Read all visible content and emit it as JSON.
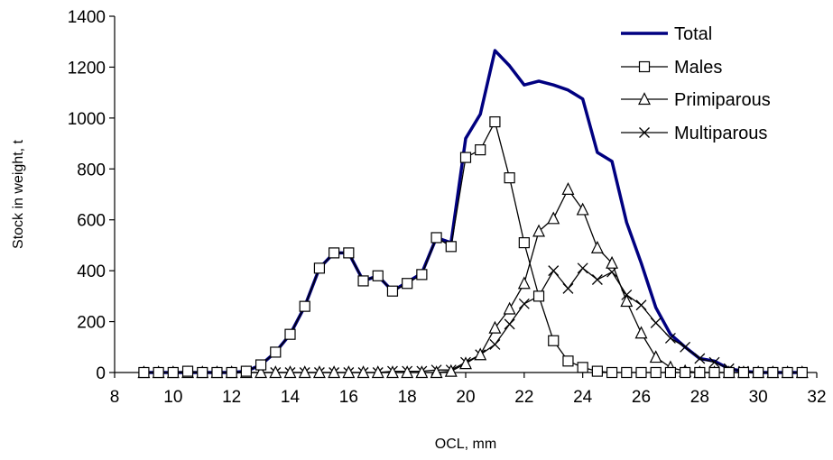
{
  "chart_data": {
    "type": "line",
    "xlabel": "OCL, mm",
    "ylabel": "Stock in weight, t",
    "xlim": [
      8,
      32
    ],
    "ylim": [
      0,
      1400
    ],
    "x_ticks": [
      8,
      10,
      12,
      14,
      16,
      18,
      20,
      22,
      24,
      26,
      28,
      30,
      32
    ],
    "y_ticks": [
      0,
      200,
      400,
      600,
      800,
      1000,
      1200,
      1400
    ],
    "grid": false,
    "legend_position": "top-right",
    "series": [
      {
        "name": "Total",
        "marker": "none",
        "color": "#000080",
        "x": [
          9,
          9.5,
          10,
          10.5,
          11,
          11.5,
          12,
          12.5,
          13,
          13.5,
          14,
          14.5,
          15,
          15.5,
          16,
          16.5,
          17,
          17.5,
          18,
          18.5,
          19,
          19.5,
          20,
          20.5,
          21,
          21.5,
          22,
          22.5,
          23,
          23.5,
          24,
          24.5,
          25,
          25.5,
          26,
          26.5,
          27,
          27.5,
          28,
          28.5,
          29,
          29.5,
          30,
          30.5,
          31,
          31.5
        ],
        "y": [
          0,
          0,
          0,
          0,
          0,
          0,
          0,
          5,
          30,
          80,
          150,
          260,
          410,
          470,
          470,
          360,
          380,
          320,
          355,
          390,
          530,
          510,
          920,
          1015,
          1265,
          1205,
          1130,
          1145,
          1130,
          1110,
          1075,
          865,
          830,
          590,
          430,
          255,
          150,
          100,
          55,
          45,
          15,
          5,
          0,
          0,
          0,
          0
        ]
      },
      {
        "name": "Males",
        "marker": "square",
        "color": "#000000",
        "x": [
          9,
          9.5,
          10,
          10.5,
          11,
          11.5,
          12,
          12.5,
          13,
          13.5,
          14,
          14.5,
          15,
          15.5,
          16,
          16.5,
          17,
          17.5,
          18,
          18.5,
          19,
          19.5,
          20,
          20.5,
          21,
          21.5,
          22,
          22.5,
          23,
          23.5,
          24,
          24.5,
          25,
          25.5,
          26,
          26.5,
          27,
          27.5,
          28,
          28.5,
          29,
          29.5,
          30,
          30.5,
          31,
          31.5
        ],
        "y": [
          0,
          0,
          0,
          5,
          0,
          0,
          0,
          5,
          30,
          80,
          150,
          260,
          410,
          470,
          470,
          360,
          380,
          320,
          350,
          385,
          530,
          495,
          845,
          875,
          985,
          765,
          510,
          300,
          125,
          45,
          20,
          5,
          0,
          0,
          0,
          0,
          0,
          0,
          0,
          0,
          0,
          0,
          0,
          0,
          0,
          0
        ]
      },
      {
        "name": "Primiparous",
        "marker": "triangle",
        "color": "#000000",
        "x": [
          9,
          9.5,
          10,
          10.5,
          11,
          11.5,
          12,
          12.5,
          13,
          13.5,
          14,
          14.5,
          15,
          15.5,
          16,
          16.5,
          17,
          17.5,
          18,
          18.5,
          19,
          19.5,
          20,
          20.5,
          21,
          21.5,
          22,
          22.5,
          23,
          23.5,
          24,
          24.5,
          25,
          25.5,
          26,
          26.5,
          27,
          27.5,
          28,
          28.5,
          29,
          29.5,
          30,
          30.5,
          31,
          31.5
        ],
        "y": [
          0,
          0,
          0,
          0,
          0,
          0,
          0,
          0,
          0,
          0,
          0,
          0,
          0,
          0,
          0,
          0,
          0,
          0,
          0,
          0,
          0,
          5,
          35,
          70,
          175,
          250,
          350,
          555,
          605,
          720,
          640,
          490,
          430,
          280,
          155,
          60,
          20,
          5,
          0,
          0,
          0,
          0,
          0,
          0,
          0,
          0
        ]
      },
      {
        "name": "Multiparous",
        "marker": "x",
        "color": "#000000",
        "x": [
          9,
          9.5,
          10,
          10.5,
          11,
          11.5,
          12,
          12.5,
          13,
          13.5,
          14,
          14.5,
          15,
          15.5,
          16,
          16.5,
          17,
          17.5,
          18,
          18.5,
          19,
          19.5,
          20,
          20.5,
          21,
          21.5,
          22,
          22.5,
          23,
          23.5,
          24,
          24.5,
          25,
          25.5,
          26,
          26.5,
          27,
          27.5,
          28,
          28.5,
          29,
          29.5,
          30,
          30.5,
          31,
          31.5
        ],
        "y": [
          0,
          0,
          0,
          0,
          0,
          0,
          0,
          0,
          0,
          0,
          0,
          0,
          0,
          0,
          0,
          0,
          0,
          5,
          5,
          5,
          10,
          10,
          40,
          70,
          110,
          190,
          270,
          300,
          400,
          330,
          410,
          365,
          395,
          305,
          265,
          195,
          135,
          100,
          55,
          40,
          15,
          5,
          0,
          0,
          0,
          0
        ]
      }
    ]
  }
}
